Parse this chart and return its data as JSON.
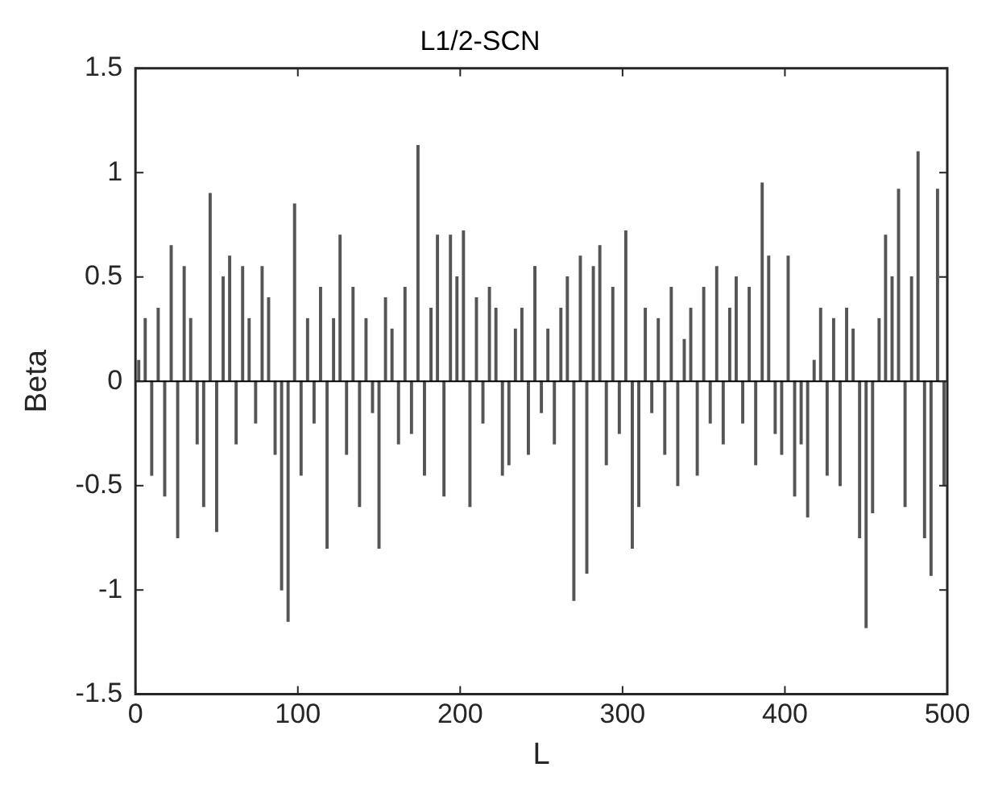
{
  "chart_data": {
    "type": "bar",
    "title": "L1/2-SCN",
    "xlabel": "L",
    "ylabel": "Beta",
    "x": [
      2,
      6,
      10,
      14,
      18,
      22,
      26,
      30,
      34,
      38,
      42,
      46,
      50,
      54,
      58,
      62,
      66,
      70,
      74,
      78,
      82,
      86,
      90,
      94,
      98,
      102,
      106,
      110,
      114,
      118,
      122,
      126,
      130,
      134,
      138,
      142,
      146,
      150,
      154,
      158,
      162,
      166,
      170,
      174,
      178,
      182,
      186,
      190,
      194,
      198,
      202,
      206,
      210,
      214,
      218,
      222,
      226,
      230,
      234,
      238,
      242,
      246,
      250,
      254,
      258,
      262,
      266,
      270,
      274,
      278,
      282,
      286,
      290,
      294,
      298,
      302,
      306,
      310,
      314,
      318,
      322,
      326,
      330,
      334,
      338,
      342,
      346,
      350,
      354,
      358,
      362,
      366,
      370,
      374,
      378,
      382,
      386,
      390,
      394,
      398,
      402,
      406,
      410,
      414,
      418,
      422,
      426,
      430,
      434,
      438,
      442,
      446,
      450,
      454,
      458,
      462,
      466,
      470,
      474,
      478,
      482,
      486,
      490,
      494,
      498
    ],
    "series": [
      {
        "color": "#555555",
        "values": [
          0.1,
          0.3,
          -0.45,
          0.35,
          -0.55,
          0.65,
          -0.75,
          0.55,
          0.3,
          -0.3,
          -0.6,
          0.9,
          -0.72,
          0.5,
          0.6,
          -0.3,
          0.55,
          0.3,
          -0.2,
          0.55,
          0.4,
          -0.35,
          -1.0,
          -1.15,
          0.85,
          -0.45,
          0.3,
          -0.2,
          0.45,
          -0.8,
          0.3,
          0.7,
          -0.35,
          0.45,
          -0.6,
          0.3,
          -0.15,
          -0.8,
          0.4,
          0.25,
          -0.3,
          0.45,
          -0.25,
          1.13,
          -0.45,
          0.35,
          0.7,
          -0.55,
          0.7,
          0.5,
          0.72,
          -0.6,
          0.4,
          -0.2,
          0.45,
          0.35,
          -0.45,
          -0.4,
          0.25,
          0.35,
          -0.35,
          0.55,
          -0.15,
          0.25,
          -0.3,
          0.35,
          0.5,
          -1.05,
          0.6,
          -0.92,
          0.55,
          0.65,
          -0.4,
          0.45,
          -0.25,
          0.72,
          -0.8,
          -0.6,
          0.35,
          -0.15,
          0.3,
          -0.35,
          0.45,
          -0.5,
          0.2,
          0.35,
          -0.45,
          0.45,
          -0.2,
          0.55,
          -0.3,
          0.35,
          0.5,
          -0.2,
          0.45,
          -0.4,
          0.95,
          0.6,
          -0.25,
          -0.35,
          0.6,
          -0.55,
          -0.3,
          -0.65,
          0.1,
          0.35,
          -0.45,
          0.3,
          -0.5,
          0.35,
          0.25,
          -0.75,
          -1.18,
          -0.63,
          0.3,
          0.7,
          0.5,
          0.92,
          -0.6,
          0.5,
          1.1,
          -0.75,
          -0.93,
          0.92,
          -0.5
        ]
      }
    ],
    "xlim": [
      0,
      500
    ],
    "xticks": [
      0,
      100,
      200,
      300,
      400,
      500
    ],
    "ylim": [
      -1.5,
      1.5
    ],
    "yticks": [
      -1.5,
      -1,
      -0.5,
      0,
      0.5,
      1,
      1.5
    ],
    "ref_lines": [
      {
        "axis": "y",
        "value": 0,
        "color": "#000000"
      }
    ],
    "grid": false,
    "legend": false
  }
}
